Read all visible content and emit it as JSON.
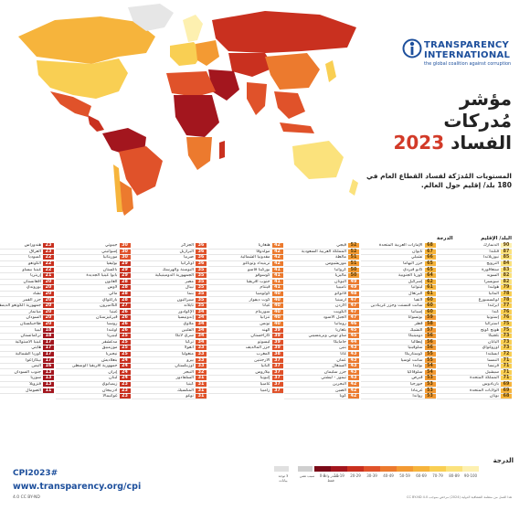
{
  "brand": {
    "name_line1": "TRANSPARENCY",
    "name_line2": "INTERNATIONAL",
    "tagline": "the global coalition against corruption",
    "color": "#1d4f9c"
  },
  "title": {
    "line1": "مؤشر",
    "line2": "مُدركات",
    "line3": "الفساد",
    "year": "2023"
  },
  "subtitle": "المستويات المُدرَكة لفساد القطاع العام في 180 بلد/ إقليم حول العالم.",
  "table_header": {
    "score": "الدرجة",
    "country": "البلد/ الإقليم"
  },
  "columns": [
    [
      {
        "s": "90",
        "n": "الدنمارك"
      },
      {
        "s": "87",
        "n": "فنلندا"
      },
      {
        "s": "85",
        "n": "نيوزيلاندا"
      },
      {
        "s": "84",
        "n": "النرويج"
      },
      {
        "s": "83",
        "n": "سنغافورة"
      },
      {
        "s": "82",
        "n": "السويد"
      },
      {
        "s": "82",
        "n": "سويسرا"
      },
      {
        "s": "79",
        "n": "هولندا"
      },
      {
        "s": "78",
        "n": "ألمانيا"
      },
      {
        "s": "78",
        "n": "لوكسمبورغ"
      },
      {
        "s": "77",
        "n": "أيرلندا"
      },
      {
        "s": "76",
        "n": "كندا"
      },
      {
        "s": "76",
        "n": "إستونيا"
      },
      {
        "s": "75",
        "n": "أستراليا"
      },
      {
        "s": "75",
        "n": "هونج كونج"
      },
      {
        "s": "73",
        "n": "بلجيكا"
      },
      {
        "s": "73",
        "n": "اليابان"
      },
      {
        "s": "73",
        "n": "أوروغواي"
      },
      {
        "s": "72",
        "n": "أيسلندا"
      },
      {
        "s": "71",
        "n": "النمسا"
      },
      {
        "s": "71",
        "n": "فرنسا"
      },
      {
        "s": "71",
        "n": "سيشيل"
      },
      {
        "s": "71",
        "n": "المملكة المتحدة"
      },
      {
        "s": "69",
        "n": "باربادوس"
      },
      {
        "s": "69",
        "n": "الولايات المتحدة"
      },
      {
        "s": "68",
        "n": "بوتان"
      }
    ],
    [
      {
        "s": "68",
        "n": "الإمارات العربية المتحدة"
      },
      {
        "s": "67",
        "n": "تايوان"
      },
      {
        "s": "66",
        "n": "تشيلي"
      },
      {
        "s": "65",
        "n": "جزر البهاما"
      },
      {
        "s": "65",
        "n": "كابو فيردي"
      },
      {
        "s": "64",
        "n": "كوريا الجنوبية"
      },
      {
        "s": "62",
        "n": "إسرائيل"
      },
      {
        "s": "61",
        "n": "ليتوانيا"
      },
      {
        "s": "61",
        "n": "البرتغال"
      },
      {
        "s": "60",
        "n": "لاتفيا"
      },
      {
        "s": "60",
        "n": "سانت فنسنت وجزر غرينادين"
      },
      {
        "s": "60",
        "n": "إسبانيا"
      },
      {
        "s": "59",
        "n": "بوتسوانا"
      },
      {
        "s": "58",
        "n": "قطر"
      },
      {
        "s": "57",
        "n": "التشيك"
      },
      {
        "s": "56",
        "n": "دومينيكا"
      },
      {
        "s": "56",
        "n": "إيطاليا"
      },
      {
        "s": "56",
        "n": "سلوفينيا"
      },
      {
        "s": "55",
        "n": "كوستاريكا"
      },
      {
        "s": "55",
        "n": "سانت لوسيا"
      },
      {
        "s": "54",
        "n": "بولندا"
      },
      {
        "s": "54",
        "n": "سلوفاكيا"
      },
      {
        "s": "53",
        "n": "قبرص"
      },
      {
        "s": "53",
        "n": "جورجيا"
      },
      {
        "s": "53",
        "n": "غرينادا"
      },
      {
        "s": "53",
        "n": "رواندا"
      }
    ],
    [
      {
        "s": "52",
        "n": "فيجي"
      },
      {
        "s": "52",
        "n": "المملكة العربية السعودية"
      },
      {
        "s": "51",
        "n": "مالطة"
      },
      {
        "s": "51",
        "n": "موريشيوس"
      },
      {
        "s": "50",
        "n": "كرواتيا"
      },
      {
        "s": "50",
        "n": "ماليزيا"
      },
      {
        "s": "49",
        "n": "اليونان"
      },
      {
        "s": "49",
        "n": "ناميبيا"
      },
      {
        "s": "48",
        "n": "فانواتو"
      },
      {
        "s": "47",
        "n": "أرمينيا"
      },
      {
        "s": "47",
        "n": "الأردن"
      },
      {
        "s": "47",
        "n": "الكويت"
      },
      {
        "s": "47",
        "n": "الجبل الأسود"
      },
      {
        "s": "46",
        "n": "رومانيا"
      },
      {
        "s": "45",
        "n": "بلغاريا"
      },
      {
        "s": "45",
        "n": "ساو تومي وبرينسيبي"
      },
      {
        "s": "44",
        "n": "جامايكا"
      },
      {
        "s": "43",
        "n": "بنين"
      },
      {
        "s": "43",
        "n": "غانا"
      },
      {
        "s": "43",
        "n": "عمان"
      },
      {
        "s": "43",
        "n": "السنغال"
      },
      {
        "s": "43",
        "n": "جزر سليمان"
      },
      {
        "s": "43",
        "n": "تيمور - ليشتي"
      },
      {
        "s": "42",
        "n": "البحرين"
      },
      {
        "s": "42",
        "n": "الصين"
      },
      {
        "s": "42",
        "n": "كوبا"
      }
    ],
    [
      {
        "s": "42",
        "n": "هنغاريا"
      },
      {
        "s": "42",
        "n": "مولدوفا"
      },
      {
        "s": "42",
        "n": "مقدونيا الشمالية"
      },
      {
        "s": "42",
        "n": "ترينيداد وتوباغو"
      },
      {
        "s": "41",
        "n": "بوركينا فاسو"
      },
      {
        "s": "41",
        "n": "كوسوفو"
      },
      {
        "s": "41",
        "n": "جنوب أفريقيا"
      },
      {
        "s": "41",
        "n": "فيتنام"
      },
      {
        "s": "40",
        "n": "كولومبيا"
      },
      {
        "s": "40",
        "n": "كوت ديفوار"
      },
      {
        "s": "40",
        "n": "غيانا"
      },
      {
        "s": "40",
        "n": "سورينام"
      },
      {
        "s": "40",
        "n": "تنزانيا"
      },
      {
        "s": "40",
        "n": "تونس"
      },
      {
        "s": "39",
        "n": "الهند"
      },
      {
        "s": "39",
        "n": "كازاخستان"
      },
      {
        "s": "39",
        "n": "ليسوتو"
      },
      {
        "s": "39",
        "n": "جزر المالديف"
      },
      {
        "s": "38",
        "n": "المغرب"
      },
      {
        "s": "37",
        "n": "الأرجنتين"
      },
      {
        "s": "37",
        "n": "ألبانيا"
      },
      {
        "s": "37",
        "n": "بيلاروس"
      },
      {
        "s": "37",
        "n": "إثيوبيا"
      },
      {
        "s": "37",
        "n": "غامبيا"
      },
      {
        "s": "37",
        "n": "زامبيا"
      }
    ],
    [
      {
        "s": "36",
        "n": "الجزائر"
      },
      {
        "s": "36",
        "n": "البرازيل"
      },
      {
        "s": "36",
        "n": "صربيا"
      },
      {
        "s": "36",
        "n": "أوكرانيا"
      },
      {
        "s": "35",
        "n": "البوسنة والهرسك"
      },
      {
        "s": "35",
        "n": "الجمهورية الدومينيكية"
      },
      {
        "s": "35",
        "n": "مصر"
      },
      {
        "s": "35",
        "n": "نيبال"
      },
      {
        "s": "35",
        "n": "بنما"
      },
      {
        "s": "35",
        "n": "سيراليون"
      },
      {
        "s": "35",
        "n": "تايلاند"
      },
      {
        "s": "34",
        "n": "الإكوادور"
      },
      {
        "s": "34",
        "n": "إندونيسيا"
      },
      {
        "s": "34",
        "n": "ملاوي"
      },
      {
        "s": "34",
        "n": "الفلبين"
      },
      {
        "s": "34",
        "n": "سري لانكا"
      },
      {
        "s": "34",
        "n": "تركيا"
      },
      {
        "s": "33",
        "n": "أنغولا"
      },
      {
        "s": "33",
        "n": "منغوليا"
      },
      {
        "s": "33",
        "n": "بيرو"
      },
      {
        "s": "33",
        "n": "أوزبكستان"
      },
      {
        "s": "32",
        "n": "النيجر"
      },
      {
        "s": "31",
        "n": "السلفادور"
      },
      {
        "s": "31",
        "n": "كينيا"
      },
      {
        "s": "31",
        "n": "المكسيك"
      },
      {
        "s": "31",
        "n": "توغو"
      }
    ],
    [
      {
        "s": "30",
        "n": "جيبوتي"
      },
      {
        "s": "30",
        "n": "إسواتيني"
      },
      {
        "s": "30",
        "n": "موريتانيا"
      },
      {
        "s": "29",
        "n": "بوليفيا"
      },
      {
        "s": "29",
        "n": "باكستان"
      },
      {
        "s": "29",
        "n": "بابوا غينيا الجديدة"
      },
      {
        "s": "28",
        "n": "الغابون"
      },
      {
        "s": "28",
        "n": "لاوس"
      },
      {
        "s": "28",
        "n": "مالي"
      },
      {
        "s": "28",
        "n": "باراغواي"
      },
      {
        "s": "27",
        "n": "الكاميرون"
      },
      {
        "s": "26",
        "n": "غينيا"
      },
      {
        "s": "26",
        "n": "قيرغيزستان"
      },
      {
        "s": "26",
        "n": "روسيا"
      },
      {
        "s": "26",
        "n": "أوغندا"
      },
      {
        "s": "25",
        "n": "ليبيريا"
      },
      {
        "s": "25",
        "n": "مدغشقر"
      },
      {
        "s": "25",
        "n": "موزمبيق"
      },
      {
        "s": "25",
        "n": "نيجيريا"
      },
      {
        "s": "24",
        "n": "بنغلاديش"
      },
      {
        "s": "24",
        "n": "جمهورية أفريقيا الوسطى"
      },
      {
        "s": "24",
        "n": "إيران"
      },
      {
        "s": "24",
        "n": "لبنان"
      },
      {
        "s": "23",
        "n": "زيمبابوي"
      },
      {
        "s": "23",
        "n": "أذربيجان"
      },
      {
        "s": "23",
        "n": "غواتيمالا"
      }
    ],
    [
      {
        "s": "23",
        "n": "هندوراس"
      },
      {
        "s": "23",
        "n": "العراق"
      },
      {
        "s": "22",
        "n": "كمبوديا"
      },
      {
        "s": "22",
        "n": "الكونغو"
      },
      {
        "s": "22",
        "n": "غينيا بيساو"
      },
      {
        "s": "21",
        "n": "إريتريا"
      },
      {
        "s": "20",
        "n": "أفغانستان"
      },
      {
        "s": "20",
        "n": "بوروندي"
      },
      {
        "s": "20",
        "n": "تشاد"
      },
      {
        "s": "20",
        "n": "جزر القمر"
      },
      {
        "s": "20",
        "n": "جمهورية الكونغو الديمقراطية"
      },
      {
        "s": "20",
        "n": "ميانمار"
      },
      {
        "s": "20",
        "n": "السودان"
      },
      {
        "s": "20",
        "n": "طاجيكستان"
      },
      {
        "s": "18",
        "n": "ليبيا"
      },
      {
        "s": "18",
        "n": "تركمانستان"
      },
      {
        "s": "17",
        "n": "غينيا الاستوائية"
      },
      {
        "s": "17",
        "n": "هايتي"
      },
      {
        "s": "17",
        "n": "كوريا الشمالية"
      },
      {
        "s": "17",
        "n": "نيكاراغوا"
      },
      {
        "s": "16",
        "n": "اليمن"
      },
      {
        "s": "13",
        "n": "جنوب السودان"
      },
      {
        "s": "13",
        "n": "سوريا"
      },
      {
        "s": "13",
        "n": "فنزويلا"
      },
      {
        "s": "11",
        "n": "الصومال"
      }
    ]
  ],
  "legend": {
    "title": "الدرجة",
    "labels": [
      "0-9",
      "10-19",
      "20-29",
      "30-39",
      "40-49",
      "50-59",
      "60-69",
      "70-79",
      "80-89",
      "90-100"
    ],
    "colors": [
      "#7a0a18",
      "#a3161e",
      "#c9301f",
      "#e0522a",
      "#ec7a2e",
      "#f39a33",
      "#f6b43c",
      "#f9cf53",
      "#fbe27c",
      "#fdf0b0"
    ],
    "no_data": [
      "لا توجد بيانات",
      "سبب تقني",
      "مصدر واحد فقط"
    ]
  },
  "footer": {
    "tag": "CPI2023#",
    "url": "www.transparency.org/cpi",
    "license": "4.0 CC BY-ND",
    "note": "هذا العمل من منظمة الشفافية الدولية (2024) مرخص بموجب CC BY-ND 4.0"
  }
}
